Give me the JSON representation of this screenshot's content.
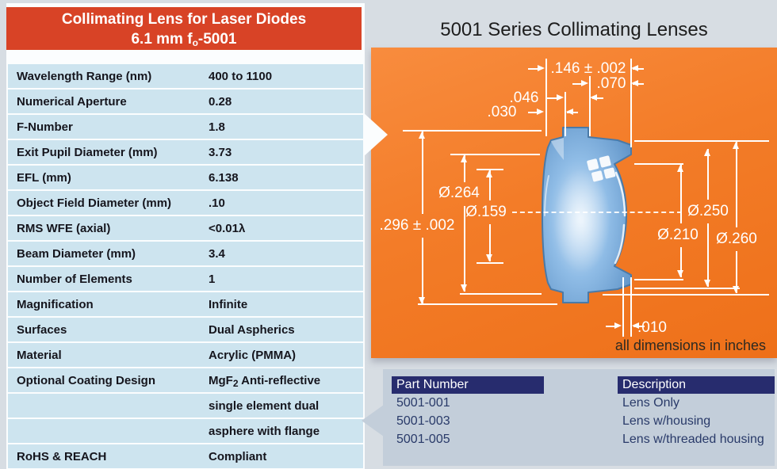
{
  "spec_panel": {
    "header": {
      "line1": "Collimating Lens for Laser Diodes",
      "line2_pre": "6.1 mm f",
      "line2_sub": "o",
      "line2_post": "-5001"
    },
    "rows": [
      {
        "label": "Wavelength Range (nm)",
        "value": "400 to 1100"
      },
      {
        "label": "Numerical Aperture",
        "value": "0.28"
      },
      {
        "label": "F-Number",
        "value": "1.8"
      },
      {
        "label": "Exit Pupil Diameter (mm)",
        "value": "3.73"
      },
      {
        "label": "EFL (mm)",
        "value": "6.138"
      },
      {
        "label": "Object Field Diameter (mm)",
        "value": ".10"
      },
      {
        "label": "RMS WFE (axial)",
        "value": "<0.01λ"
      },
      {
        "label": "Beam Diameter (mm)",
        "value": "3.4"
      },
      {
        "label": "Number of Elements",
        "value": "1"
      },
      {
        "label": "Magnification",
        "value": "Infinite"
      },
      {
        "label": "Surfaces",
        "value": "Dual Aspherics"
      },
      {
        "label": "Material",
        "value": "Acrylic (PMMA)"
      },
      {
        "label": "Optional Coating Design",
        "value": [
          {
            "t": "MgF"
          },
          {
            "t": "2",
            "sub": true
          },
          {
            "t": " Anti-reflective"
          }
        ]
      },
      {
        "label": "",
        "value": "single element dual"
      },
      {
        "label": "",
        "value": "asphere with flange"
      },
      {
        "label": "RoHS & REACH",
        "value": "Compliant"
      }
    ]
  },
  "diagram": {
    "title": "5001 Series Collimating Lenses",
    "note": "all dimensions in inches",
    "dims": {
      "overall_thickness": ".146 ± .002",
      "flange_thickness": ".070",
      "step_046": ".046",
      "step_030": ".030",
      "dia_264": "Ø.264",
      "dia_159": "Ø.159",
      "overall_height": ".296 ± .002",
      "dia_250": "Ø.250",
      "dia_210": "Ø.210",
      "dia_260": "Ø.260",
      "offset_010": ".010"
    }
  },
  "parts_table": {
    "headers": [
      "Part Number",
      "Description"
    ],
    "rows": [
      {
        "part_number": "5001-001",
        "description": "Lens Only"
      },
      {
        "part_number": "5001-003",
        "description": "Lens w/housing"
      },
      {
        "part_number": "5001-005",
        "description": "Lens w/threaded housing"
      }
    ]
  },
  "colors": {
    "header_red": "#d84326",
    "row_blue": "#cde4ef",
    "diagram_orange": "#f37c28",
    "table_navy": "#272c6e",
    "lens_blue": "#6fa3d8",
    "page_background": "#d7dde3"
  }
}
